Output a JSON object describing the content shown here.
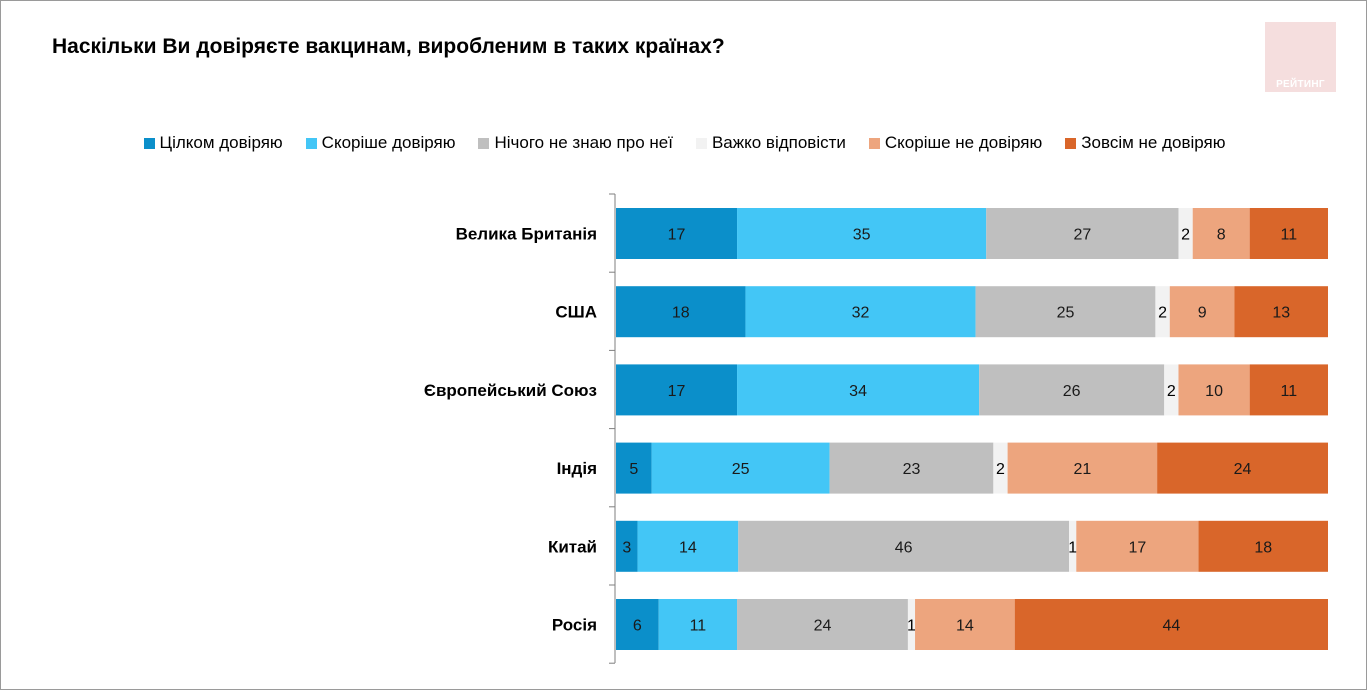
{
  "title": "Наскільки Ви довіряєте вакцинам, виробленим в таких країнах?",
  "logo_text": "РЕЙТИНГ",
  "chart_data": {
    "type": "bar",
    "orientation": "horizontal",
    "stacked": true,
    "legend_position": "top",
    "categories": [
      "Велика Британія",
      "США",
      "Європейський Союз",
      "Індія",
      "Китай",
      "Росія"
    ],
    "series": [
      {
        "name": "Цілком довіряю",
        "color": "#0b8fca",
        "values": [
          17,
          18,
          17,
          5,
          3,
          6
        ]
      },
      {
        "name": "Скоріше довіряю",
        "color": "#43c6f6",
        "values": [
          35,
          32,
          34,
          25,
          14,
          11
        ]
      },
      {
        "name": "Нічого не знаю про неї",
        "color": "#bfbfbf",
        "values": [
          27,
          25,
          26,
          23,
          46,
          24
        ]
      },
      {
        "name": "Важко відповісти",
        "color": "#f2f2f2",
        "values": [
          2,
          2,
          2,
          2,
          1,
          1
        ]
      },
      {
        "name": "Скоріше не довіряю",
        "color": "#eda57e",
        "values": [
          8,
          9,
          10,
          21,
          17,
          14
        ]
      },
      {
        "name": "Зовсім не довіряю",
        "color": "#d9662a",
        "values": [
          11,
          13,
          11,
          24,
          18,
          44
        ]
      }
    ]
  }
}
